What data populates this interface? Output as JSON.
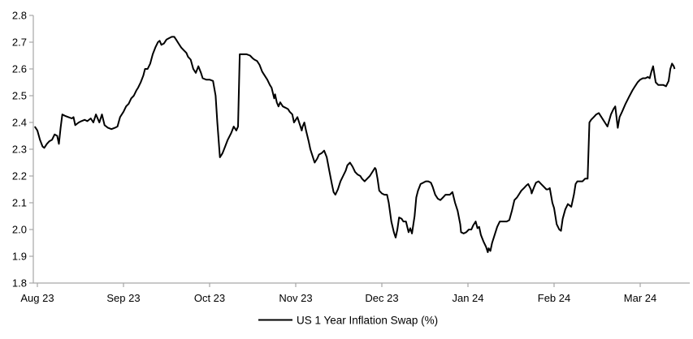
{
  "chart": {
    "legend_label": "US 1 Year Inflation Swap (%)",
    "colors": {
      "series_line": "#000000",
      "axis": "#a6a6a6",
      "tick": "#a6a6a6",
      "text": "#000000",
      "background": "#ffffff"
    },
    "y_axis": {
      "min": 1.8,
      "max": 2.8,
      "tick_step": 0.1,
      "tick_labels": [
        "2.8",
        "2.7",
        "2.6",
        "2.5",
        "2.4",
        "2.3",
        "2.2",
        "2.1",
        "2.0",
        "1.9",
        "1.8"
      ]
    },
    "x_axis": {
      "tick_labels": [
        "Aug 23",
        "Sep 23",
        "Oct 23",
        "Nov 23",
        "Dec 23",
        "Jan 24",
        "Feb 24",
        "Mar 24"
      ]
    }
  },
  "chart_data": {
    "type": "line",
    "title": "",
    "xlabel": "",
    "ylabel": "",
    "ylim": [
      1.8,
      2.8
    ],
    "grid": false,
    "legend_position": "bottom",
    "x_unit": "months since Aug 23 tick (0 = Aug 23, 1 = Sep 23, ... 7 = Mar 24)",
    "x_tick_labels": [
      "Aug 23",
      "Sep 23",
      "Oct 23",
      "Nov 23",
      "Dec 23",
      "Jan 24",
      "Feb 24",
      "Mar 24"
    ],
    "series": [
      {
        "name": "US 1 Year Inflation Swap (%)",
        "color": "#000000",
        "points": [
          [
            -0.03,
            2.385
          ],
          [
            0,
            2.37
          ],
          [
            0.03,
            2.335
          ],
          [
            0.06,
            2.31
          ],
          [
            0.08,
            2.305
          ],
          [
            0.11,
            2.32
          ],
          [
            0.14,
            2.33
          ],
          [
            0.17,
            2.335
          ],
          [
            0.2,
            2.355
          ],
          [
            0.23,
            2.35
          ],
          [
            0.25,
            2.32
          ],
          [
            0.27,
            2.38
          ],
          [
            0.29,
            2.43
          ],
          [
            0.32,
            2.425
          ],
          [
            0.36,
            2.42
          ],
          [
            0.4,
            2.415
          ],
          [
            0.42,
            2.42
          ],
          [
            0.44,
            2.39
          ],
          [
            0.48,
            2.4
          ],
          [
            0.51,
            2.405
          ],
          [
            0.55,
            2.41
          ],
          [
            0.58,
            2.405
          ],
          [
            0.62,
            2.415
          ],
          [
            0.65,
            2.4
          ],
          [
            0.68,
            2.43
          ],
          [
            0.72,
            2.4
          ],
          [
            0.75,
            2.43
          ],
          [
            0.78,
            2.39
          ],
          [
            0.82,
            2.38
          ],
          [
            0.86,
            2.375
          ],
          [
            0.9,
            2.38
          ],
          [
            0.93,
            2.385
          ],
          [
            0.96,
            2.42
          ],
          [
            1,
            2.44
          ],
          [
            1.03,
            2.46
          ],
          [
            1.06,
            2.47
          ],
          [
            1.09,
            2.49
          ],
          [
            1.12,
            2.5
          ],
          [
            1.15,
            2.52
          ],
          [
            1.17,
            2.53
          ],
          [
            1.2,
            2.55
          ],
          [
            1.23,
            2.575
          ],
          [
            1.25,
            2.6
          ],
          [
            1.28,
            2.6
          ],
          [
            1.31,
            2.62
          ],
          [
            1.34,
            2.655
          ],
          [
            1.37,
            2.68
          ],
          [
            1.4,
            2.7
          ],
          [
            1.42,
            2.705
          ],
          [
            1.44,
            2.69
          ],
          [
            1.47,
            2.695
          ],
          [
            1.5,
            2.71
          ],
          [
            1.53,
            2.715
          ],
          [
            1.56,
            2.72
          ],
          [
            1.59,
            2.72
          ],
          [
            1.61,
            2.71
          ],
          [
            1.64,
            2.695
          ],
          [
            1.67,
            2.68
          ],
          [
            1.7,
            2.67
          ],
          [
            1.73,
            2.66
          ],
          [
            1.75,
            2.645
          ],
          [
            1.78,
            2.635
          ],
          [
            1.81,
            2.6
          ],
          [
            1.84,
            2.585
          ],
          [
            1.87,
            2.61
          ],
          [
            1.9,
            2.585
          ],
          [
            1.92,
            2.565
          ],
          [
            1.96,
            2.56
          ],
          [
            2,
            2.56
          ],
          [
            2.04,
            2.555
          ],
          [
            2.07,
            2.5
          ],
          [
            2.09,
            2.4
          ],
          [
            2.12,
            2.27
          ],
          [
            2.15,
            2.285
          ],
          [
            2.18,
            2.31
          ],
          [
            2.21,
            2.335
          ],
          [
            2.25,
            2.36
          ],
          [
            2.28,
            2.385
          ],
          [
            2.31,
            2.37
          ],
          [
            2.33,
            2.385
          ],
          [
            2.35,
            2.655
          ],
          [
            2.4,
            2.655
          ],
          [
            2.43,
            2.655
          ],
          [
            2.47,
            2.65
          ],
          [
            2.5,
            2.64
          ],
          [
            2.52,
            2.635
          ],
          [
            2.55,
            2.63
          ],
          [
            2.58,
            2.615
          ],
          [
            2.61,
            2.59
          ],
          [
            2.64,
            2.575
          ],
          [
            2.67,
            2.56
          ],
          [
            2.7,
            2.54
          ],
          [
            2.72,
            2.53
          ],
          [
            2.75,
            2.49
          ],
          [
            2.76,
            2.505
          ],
          [
            2.78,
            2.475
          ],
          [
            2.8,
            2.46
          ],
          [
            2.82,
            2.475
          ],
          [
            2.85,
            2.46
          ],
          [
            2.88,
            2.455
          ],
          [
            2.91,
            2.45
          ],
          [
            2.93,
            2.44
          ],
          [
            2.96,
            2.43
          ],
          [
            2.98,
            2.4
          ],
          [
            3,
            2.41
          ],
          [
            3.02,
            2.42
          ],
          [
            3.05,
            2.39
          ],
          [
            3.07,
            2.37
          ],
          [
            3.08,
            2.385
          ],
          [
            3.1,
            2.4
          ],
          [
            3.12,
            2.37
          ],
          [
            3.15,
            2.33
          ],
          [
            3.17,
            2.3
          ],
          [
            3.2,
            2.27
          ],
          [
            3.22,
            2.25
          ],
          [
            3.25,
            2.265
          ],
          [
            3.27,
            2.28
          ],
          [
            3.3,
            2.285
          ],
          [
            3.33,
            2.295
          ],
          [
            3.36,
            2.27
          ],
          [
            3.39,
            2.22
          ],
          [
            3.42,
            2.17
          ],
          [
            3.44,
            2.14
          ],
          [
            3.46,
            2.13
          ],
          [
            3.49,
            2.15
          ],
          [
            3.52,
            2.18
          ],
          [
            3.55,
            2.2
          ],
          [
            3.58,
            2.22
          ],
          [
            3.6,
            2.24
          ],
          [
            3.63,
            2.25
          ],
          [
            3.66,
            2.235
          ],
          [
            3.69,
            2.215
          ],
          [
            3.72,
            2.205
          ],
          [
            3.75,
            2.2
          ],
          [
            3.77,
            2.19
          ],
          [
            3.8,
            2.18
          ],
          [
            3.83,
            2.19
          ],
          [
            3.86,
            2.2
          ],
          [
            3.89,
            2.215
          ],
          [
            3.92,
            2.23
          ],
          [
            3.93,
            2.225
          ],
          [
            3.95,
            2.19
          ],
          [
            3.97,
            2.145
          ],
          [
            4,
            2.135
          ],
          [
            4.03,
            2.13
          ],
          [
            4.06,
            2.13
          ],
          [
            4.08,
            2.1
          ],
          [
            4.11,
            2.03
          ],
          [
            4.14,
            1.99
          ],
          [
            4.16,
            1.97
          ],
          [
            4.18,
            2
          ],
          [
            4.2,
            2.045
          ],
          [
            4.23,
            2.04
          ],
          [
            4.25,
            2.03
          ],
          [
            4.28,
            2.03
          ],
          [
            4.31,
            1.99
          ],
          [
            4.33,
            2.005
          ],
          [
            4.35,
            1.985
          ],
          [
            4.38,
            2.05
          ],
          [
            4.4,
            2.12
          ],
          [
            4.42,
            2.145
          ],
          [
            4.45,
            2.17
          ],
          [
            4.48,
            2.175
          ],
          [
            4.51,
            2.18
          ],
          [
            4.54,
            2.18
          ],
          [
            4.57,
            2.175
          ],
          [
            4.59,
            2.16
          ],
          [
            4.62,
            2.13
          ],
          [
            4.65,
            2.115
          ],
          [
            4.68,
            2.11
          ],
          [
            4.71,
            2.12
          ],
          [
            4.74,
            2.13
          ],
          [
            4.76,
            2.13
          ],
          [
            4.79,
            2.13
          ],
          [
            4.82,
            2.14
          ],
          [
            4.85,
            2.1
          ],
          [
            4.88,
            2.07
          ],
          [
            4.91,
            2.02
          ],
          [
            4.92,
            1.99
          ],
          [
            4.95,
            1.985
          ],
          [
            4.98,
            1.99
          ],
          [
            5.01,
            2
          ],
          [
            5.04,
            2
          ],
          [
            5.06,
            2.015
          ],
          [
            5.09,
            2.03
          ],
          [
            5.11,
            2.005
          ],
          [
            5.13,
            2.01
          ],
          [
            5.15,
            1.98
          ],
          [
            5.18,
            1.955
          ],
          [
            5.21,
            1.935
          ],
          [
            5.23,
            1.915
          ],
          [
            5.24,
            1.93
          ],
          [
            5.26,
            1.92
          ],
          [
            5.28,
            1.95
          ],
          [
            5.3,
            1.97
          ],
          [
            5.34,
            2.01
          ],
          [
            5.37,
            2.03
          ],
          [
            5.4,
            2.03
          ],
          [
            5.42,
            2.03
          ],
          [
            5.45,
            2.03
          ],
          [
            5.48,
            2.035
          ],
          [
            5.51,
            2.07
          ],
          [
            5.54,
            2.11
          ],
          [
            5.57,
            2.12
          ],
          [
            5.59,
            2.13
          ],
          [
            5.62,
            2.145
          ],
          [
            5.65,
            2.155
          ],
          [
            5.68,
            2.165
          ],
          [
            5.7,
            2.17
          ],
          [
            5.73,
            2.15
          ],
          [
            5.74,
            2.135
          ],
          [
            5.77,
            2.16
          ],
          [
            5.79,
            2.175
          ],
          [
            5.82,
            2.18
          ],
          [
            5.85,
            2.17
          ],
          [
            5.88,
            2.16
          ],
          [
            5.91,
            2.15
          ],
          [
            5.93,
            2.15
          ],
          [
            5.95,
            2.155
          ],
          [
            5.98,
            2.1
          ],
          [
            6,
            2.08
          ],
          [
            6.03,
            2.02
          ],
          [
            6.06,
            2
          ],
          [
            6.08,
            1.995
          ],
          [
            6.1,
            2.04
          ],
          [
            6.13,
            2.075
          ],
          [
            6.16,
            2.095
          ],
          [
            6.18,
            2.09
          ],
          [
            6.2,
            2.085
          ],
          [
            6.23,
            2.13
          ],
          [
            6.25,
            2.17
          ],
          [
            6.27,
            2.18
          ],
          [
            6.3,
            2.18
          ],
          [
            6.33,
            2.18
          ],
          [
            6.36,
            2.19
          ],
          [
            6.39,
            2.19
          ],
          [
            6.41,
            2.4
          ],
          [
            6.43,
            2.41
          ],
          [
            6.46,
            2.42
          ],
          [
            6.49,
            2.43
          ],
          [
            6.52,
            2.435
          ],
          [
            6.55,
            2.42
          ],
          [
            6.59,
            2.4
          ],
          [
            6.62,
            2.385
          ],
          [
            6.66,
            2.43
          ],
          [
            6.69,
            2.45
          ],
          [
            6.71,
            2.46
          ],
          [
            6.74,
            2.38
          ],
          [
            6.76,
            2.42
          ],
          [
            6.79,
            2.44
          ],
          [
            6.83,
            2.47
          ],
          [
            6.87,
            2.495
          ],
          [
            6.91,
            2.52
          ],
          [
            6.94,
            2.535
          ],
          [
            6.97,
            2.55
          ],
          [
            7,
            2.56
          ],
          [
            7.03,
            2.565
          ],
          [
            7.06,
            2.565
          ],
          [
            7.09,
            2.57
          ],
          [
            7.11,
            2.565
          ],
          [
            7.13,
            2.59
          ],
          [
            7.15,
            2.61
          ],
          [
            7.18,
            2.55
          ],
          [
            7.21,
            2.54
          ],
          [
            7.24,
            2.54
          ],
          [
            7.27,
            2.54
          ],
          [
            7.3,
            2.535
          ],
          [
            7.33,
            2.555
          ],
          [
            7.35,
            2.6
          ],
          [
            7.37,
            2.62
          ],
          [
            7.39,
            2.61
          ],
          [
            7.4,
            2.6
          ]
        ]
      }
    ]
  }
}
